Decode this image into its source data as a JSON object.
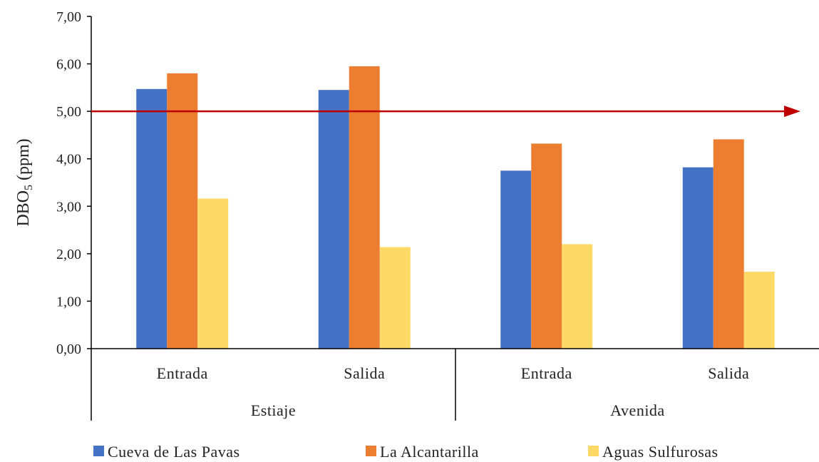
{
  "chart_data": {
    "type": "bar",
    "ylabel": "DBO",
    "ylabel_subscript": "5",
    "ylabel_suffix": " (ppm)",
    "ylim": [
      0,
      7
    ],
    "yticks": [
      "0,00",
      "1,00",
      "2,00",
      "3,00",
      "4,00",
      "5,00",
      "6,00",
      "7,00"
    ],
    "grid": false,
    "legend_position": "bottom",
    "groups": [
      {
        "label": "Estiaje",
        "categories": [
          "Entrada",
          "Salida"
        ]
      },
      {
        "label": "Avenida",
        "categories": [
          "Entrada",
          "Salida"
        ]
      }
    ],
    "series": [
      {
        "name": "Cueva de Las Pavas",
        "color": "#4472C4",
        "values": [
          5.47,
          5.45,
          3.75,
          3.82
        ]
      },
      {
        "name": "La Alcantarilla",
        "color": "#ED7D31",
        "values": [
          5.8,
          5.95,
          4.32,
          4.41
        ]
      },
      {
        "name": "Aguas Sulfurosas",
        "color": "#FFD966",
        "values": [
          3.16,
          2.14,
          2.2,
          1.62
        ]
      }
    ],
    "reference_line": {
      "value": 5.0,
      "color": "#C00000",
      "style": "arrow"
    }
  }
}
